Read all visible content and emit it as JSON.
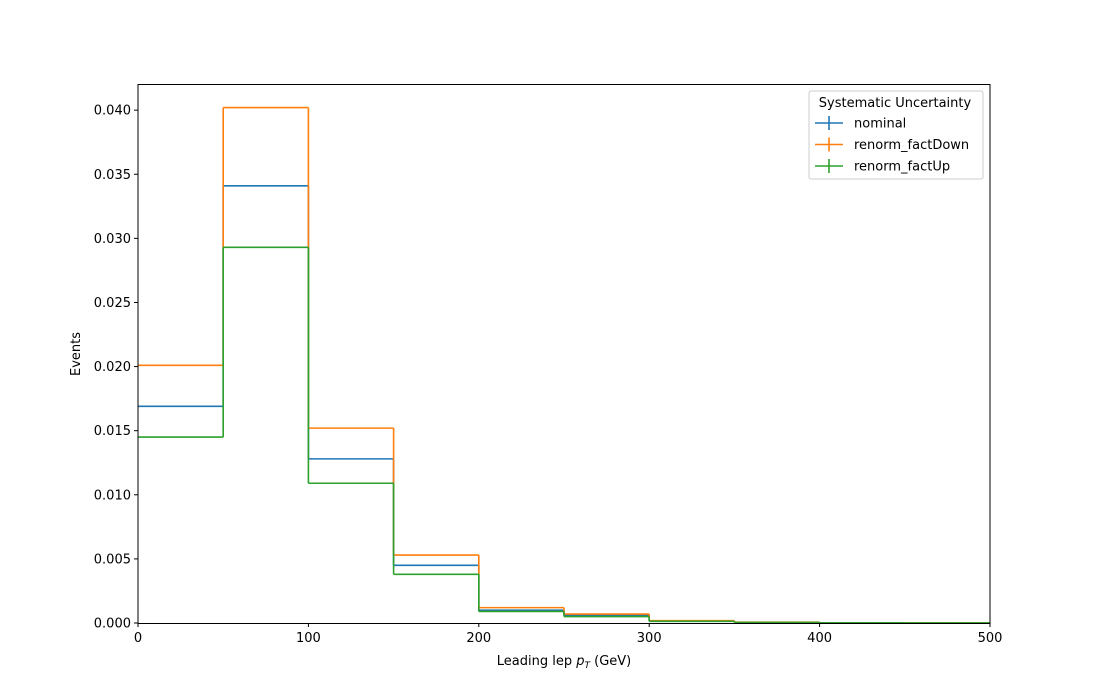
{
  "chart_data": {
    "type": "histogram-step",
    "xlabel_main": "Leading lep ",
    "xlabel_var": "p",
    "xlabel_sub": "T",
    "xlabel_unit": " (GeV)",
    "ylabel": "Events",
    "xlim": [
      0,
      500
    ],
    "ylim": [
      0,
      0.042
    ],
    "xticks": [
      0,
      100,
      200,
      300,
      400,
      500
    ],
    "yticks": [
      0.0,
      0.005,
      0.01,
      0.015,
      0.02,
      0.025,
      0.03,
      0.035,
      0.04
    ],
    "ytick_labels": [
      "0.000",
      "0.005",
      "0.010",
      "0.015",
      "0.020",
      "0.025",
      "0.030",
      "0.035",
      "0.040"
    ],
    "bin_edges": [
      0,
      50,
      100,
      150,
      200,
      250,
      300,
      350,
      400,
      450,
      500
    ],
    "legend_title": "Systematic Uncertainty",
    "legend_position": "top-right",
    "series": [
      {
        "name": "nominal",
        "color": "#1f77b4",
        "values": [
          0.0169,
          0.0341,
          0.0128,
          0.0045,
          0.001,
          0.0006,
          0.00015,
          5e-05,
          2e-05,
          1e-05
        ]
      },
      {
        "name": "renorm_factDown",
        "color": "#ff7f0e",
        "values": [
          0.0201,
          0.0402,
          0.0152,
          0.0053,
          0.0012,
          0.0007,
          0.00018,
          6e-05,
          2e-05,
          1e-05
        ]
      },
      {
        "name": "renorm_factUp",
        "color": "#2ca02c",
        "values": [
          0.0145,
          0.0293,
          0.0109,
          0.0038,
          0.0009,
          0.0005,
          0.00013,
          4e-05,
          2e-05,
          1e-05
        ]
      }
    ]
  }
}
